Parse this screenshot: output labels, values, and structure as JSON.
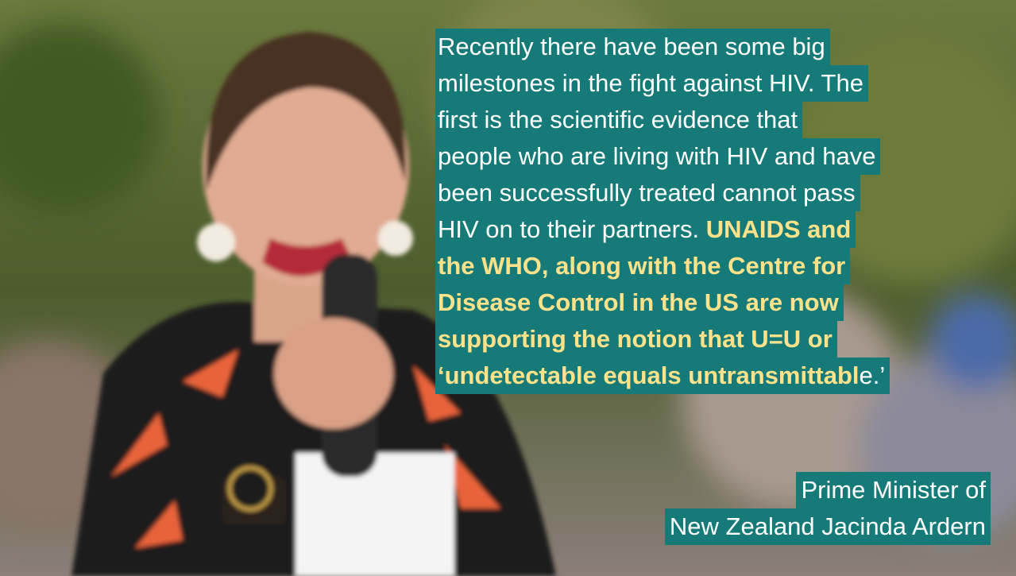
{
  "quote": {
    "lines": [
      [
        {
          "text": "Recently there have been some big",
          "bold": false
        }
      ],
      [
        {
          "text": "milestones in the fight against HIV. The",
          "bold": false
        }
      ],
      [
        {
          "text": "first is the scientific evidence that",
          "bold": false
        }
      ],
      [
        {
          "text": "people who are living with HIV and have",
          "bold": false
        }
      ],
      [
        {
          "text": "been successfully treated cannot pass",
          "bold": false
        }
      ],
      [
        {
          "text": "HIV on to their partners. ",
          "bold": false
        },
        {
          "text": "UNAIDS and",
          "bold": true
        }
      ],
      [
        {
          "text": "the WHO, along with the Centre for",
          "bold": true
        }
      ],
      [
        {
          "text": "Disease Control in the US are now",
          "bold": true
        }
      ],
      [
        {
          "text": "supporting the notion that U=U or",
          "bold": true
        }
      ],
      [
        {
          "text": "‘undetectable equals untransmittabl",
          "bold": true
        },
        {
          "text": "e.’",
          "bold": false
        }
      ]
    ]
  },
  "attribution": {
    "lines": [
      "Prime Minister of",
      "New Zealand Jacinda Ardern"
    ]
  }
}
